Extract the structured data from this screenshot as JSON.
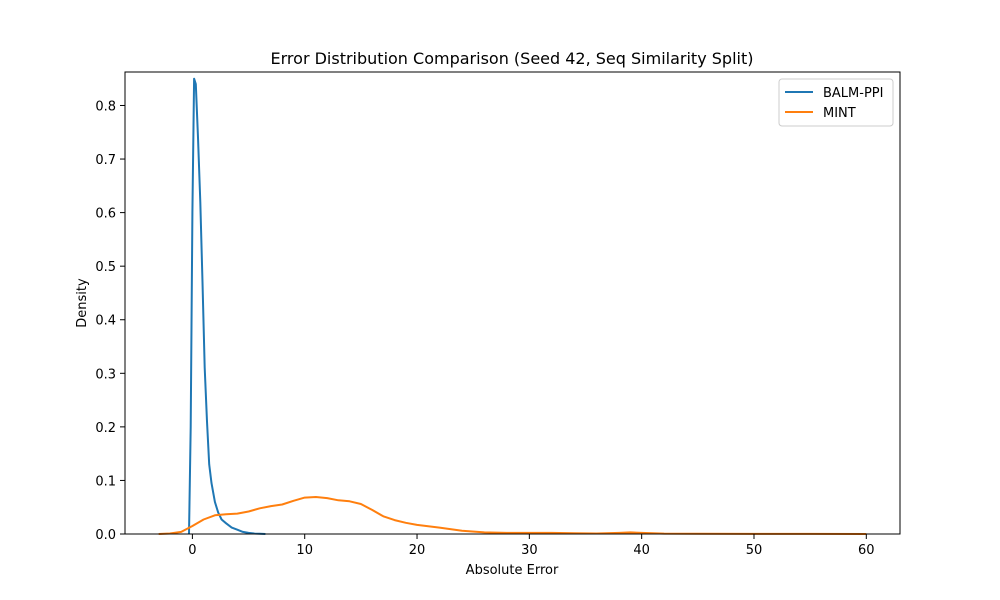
{
  "chart_data": {
    "type": "line",
    "title": "Error Distribution Comparison (Seed 42, Seq Similarity Split)",
    "xlabel": "Absolute Error",
    "ylabel": "Density",
    "xlim": [
      -6,
      63
    ],
    "ylim": [
      0,
      0.8625
    ],
    "xticks": [
      0,
      10,
      20,
      30,
      40,
      50,
      60
    ],
    "yticks": [
      0.0,
      0.1,
      0.2,
      0.3,
      0.4,
      0.5,
      0.6,
      0.7,
      0.8
    ],
    "ytick_labels": [
      "0.0",
      "0.1",
      "0.2",
      "0.3",
      "0.4",
      "0.5",
      "0.6",
      "0.7",
      "0.8"
    ],
    "grid": false,
    "legend_position": "top-right",
    "series": [
      {
        "name": "BALM-PPI",
        "color": "#1f77b4",
        "x": [
          -0.3,
          -0.15,
          0.0,
          0.15,
          0.3,
          0.5,
          0.7,
          0.9,
          1.1,
          1.3,
          1.5,
          1.7,
          2.0,
          2.3,
          2.6,
          3.0,
          3.5,
          4.0,
          4.5,
          5.0,
          5.5,
          6.0,
          6.5
        ],
        "y": [
          0.0,
          0.2,
          0.6,
          0.85,
          0.84,
          0.74,
          0.62,
          0.47,
          0.31,
          0.21,
          0.13,
          0.095,
          0.06,
          0.04,
          0.027,
          0.02,
          0.012,
          0.008,
          0.004,
          0.002,
          0.001,
          0.0005,
          0.0
        ]
      },
      {
        "name": "MINT",
        "color": "#ff7f0e",
        "x": [
          -3,
          -2,
          -1,
          0,
          1,
          2,
          3,
          4,
          5,
          6,
          7,
          8,
          9,
          10,
          11,
          12,
          13,
          14,
          15,
          16,
          17,
          18,
          19,
          20,
          22,
          24,
          26,
          28,
          30,
          32,
          34,
          36,
          38,
          39,
          40,
          42,
          45,
          50,
          55,
          60
        ],
        "y": [
          0.0,
          0.001,
          0.004,
          0.015,
          0.027,
          0.035,
          0.037,
          0.038,
          0.042,
          0.048,
          0.052,
          0.055,
          0.062,
          0.068,
          0.069,
          0.067,
          0.063,
          0.061,
          0.056,
          0.045,
          0.033,
          0.026,
          0.021,
          0.017,
          0.012,
          0.006,
          0.003,
          0.002,
          0.002,
          0.002,
          0.0015,
          0.001,
          0.002,
          0.003,
          0.002,
          0.0008,
          0.0003,
          0.0002,
          0.0001,
          0.0
        ]
      }
    ]
  }
}
